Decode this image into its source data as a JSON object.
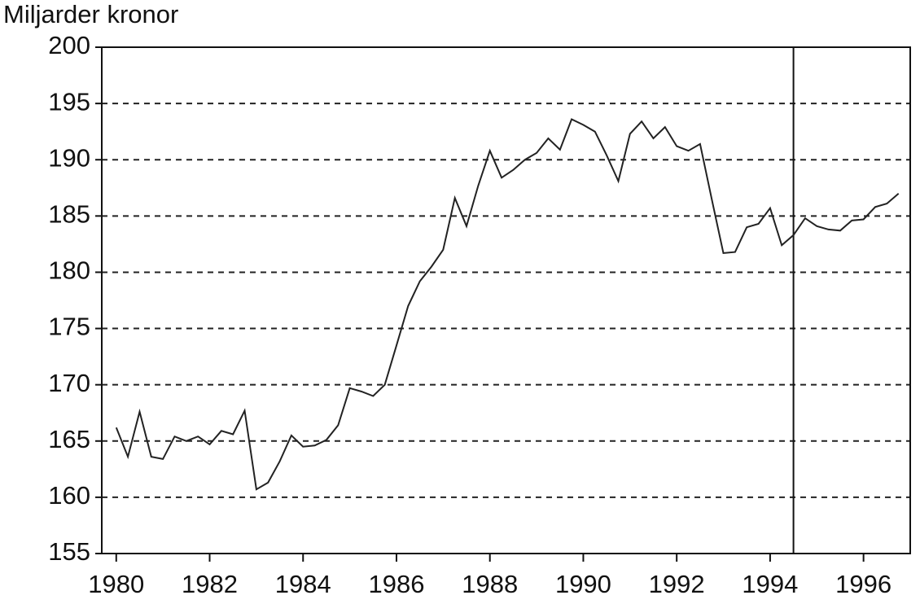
{
  "chart_data": {
    "type": "line",
    "y_label": "Miljarder kronor",
    "x": [
      1980,
      1980.25,
      1980.5,
      1980.75,
      1981,
      1981.25,
      1981.5,
      1981.75,
      1982,
      1982.25,
      1982.5,
      1982.75,
      1983,
      1983.25,
      1983.5,
      1983.75,
      1984,
      1984.25,
      1984.5,
      1984.75,
      1985,
      1985.25,
      1985.5,
      1985.75,
      1986,
      1986.25,
      1986.5,
      1986.75,
      1987,
      1987.25,
      1987.5,
      1987.75,
      1988,
      1988.25,
      1988.5,
      1988.75,
      1989,
      1989.25,
      1989.5,
      1989.75,
      1990,
      1990.25,
      1990.5,
      1990.75,
      1991,
      1991.25,
      1991.5,
      1991.75,
      1992,
      1992.25,
      1992.5,
      1992.75,
      1993,
      1993.25,
      1993.5,
      1993.75,
      1994,
      1994.25,
      1994.5,
      1994.75,
      1995,
      1995.25,
      1995.5,
      1995.75,
      1996,
      1996.25,
      1996.5,
      1996.75
    ],
    "series": [
      {
        "color": "#222222",
        "values": [
          166.2,
          163.6,
          167.6,
          163.6,
          163.4,
          165.4,
          165.0,
          165.4,
          164.7,
          165.9,
          165.6,
          167.7,
          160.7,
          161.3,
          163.2,
          165.5,
          164.5,
          164.6,
          165.1,
          166.4,
          169.7,
          169.4,
          169.0,
          170.0,
          173.5,
          177.0,
          179.2,
          180.5,
          182.0,
          186.6,
          184.1,
          187.7,
          190.8,
          188.4,
          189.1,
          190.0,
          190.6,
          191.9,
          190.9,
          193.6,
          193.1,
          192.5,
          190.4,
          188.1,
          192.3,
          193.4,
          191.9,
          192.9,
          191.2,
          190.8,
          191.4,
          186.5,
          181.7,
          181.8,
          184.0,
          184.3,
          185.7,
          182.4,
          183.3,
          184.8,
          184.1,
          183.8,
          183.7,
          184.6,
          184.7,
          185.8,
          186.1,
          187.0
        ]
      }
    ],
    "xlim": [
      1979.69,
      1997.0
    ],
    "xticks": [
      1980,
      1982,
      1984,
      1986,
      1988,
      1990,
      1992,
      1994,
      1996
    ],
    "ylim": [
      155,
      200
    ],
    "yticks": [
      155,
      160,
      165,
      170,
      175,
      180,
      185,
      190,
      195,
      200
    ],
    "grid": true,
    "vline": 1994.5
  }
}
